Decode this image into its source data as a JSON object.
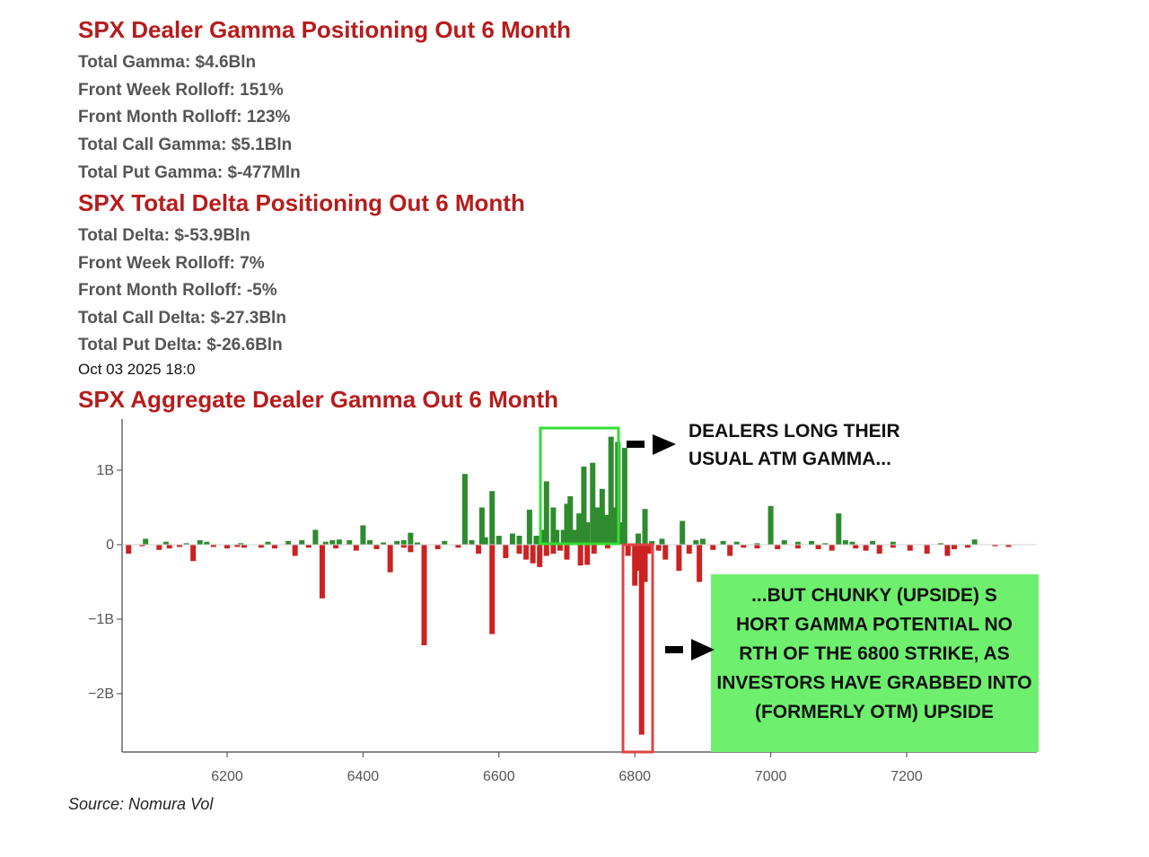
{
  "gamma_section": {
    "title": "SPX Dealer Gamma Positioning Out 6 Month",
    "stats": [
      "Total Gamma: $4.6Bln",
      "Front Week Rolloff: 151%",
      "Front Month Rolloff: 123%",
      "Total Call Gamma: $5.1Bln",
      "Total Put Gamma: $-477Mln"
    ]
  },
  "delta_section": {
    "title": "SPX Total Delta Positioning Out 6 Month",
    "stats": [
      "Total Delta: $-53.9Bln",
      "Front Week Rolloff: 7%",
      "Front Month Rolloff: -5%",
      "Total Call Delta: $-27.3Bln",
      "Total Put Delta: $-26.6Bln"
    ]
  },
  "timestamp": "Oct 03 2025 18:0",
  "source": "Source: Nomura Vol",
  "colors": {
    "heading": "#b71c1c",
    "positive": "#2e8b2e",
    "negative": "#cc2222",
    "highlight_green": "#33dd33",
    "highlight_red": "#dd4444",
    "callout_bg": "#6ef06e"
  },
  "chart_data": {
    "type": "bar",
    "title": "SPX Aggregate Dealer Gamma Out 6 Month",
    "xlabel": "",
    "ylabel": "",
    "xlim": [
      6050,
      7375
    ],
    "ylim": [
      -2.8,
      1.65
    ],
    "x_ticks": [
      6200,
      6400,
      6600,
      6800,
      7000,
      7200
    ],
    "x_tick_labels": [
      "6200",
      "6400",
      "6600",
      "6800",
      "7000",
      "7200"
    ],
    "y_ticks": [
      1,
      0,
      -1,
      -2
    ],
    "y_tick_labels": [
      "1B",
      "0",
      "−1B",
      "−2B"
    ],
    "units": "billions USD gamma",
    "series": [
      {
        "color": "#2e8b2e",
        "points": [
          [
            6080,
            0.08
          ],
          [
            6110,
            0.04
          ],
          [
            6140,
            0.02
          ],
          [
            6160,
            0.06
          ],
          [
            6170,
            0.04
          ],
          [
            6220,
            0.02
          ],
          [
            6260,
            0.04
          ],
          [
            6290,
            0.05
          ],
          [
            6310,
            0.06
          ],
          [
            6330,
            0.2
          ],
          [
            6345,
            0.04
          ],
          [
            6355,
            0.06
          ],
          [
            6365,
            0.07
          ],
          [
            6380,
            0.06
          ],
          [
            6400,
            0.26
          ],
          [
            6410,
            0.06
          ],
          [
            6430,
            0.03
          ],
          [
            6450,
            0.05
          ],
          [
            6460,
            0.06
          ],
          [
            6470,
            0.16
          ],
          [
            6480,
            0.03
          ],
          [
            6520,
            0.05
          ],
          [
            6550,
            0.95
          ],
          [
            6560,
            0.06
          ],
          [
            6575,
            0.5
          ],
          [
            6580,
            0.1
          ],
          [
            6590,
            0.72
          ],
          [
            6600,
            0.12
          ],
          [
            6620,
            0.15
          ],
          [
            6630,
            0.12
          ],
          [
            6645,
            0.47
          ],
          [
            6655,
            0.12
          ],
          [
            6665,
            0.2
          ],
          [
            6670,
            0.85
          ],
          [
            6680,
            0.5
          ],
          [
            6685,
            0.2
          ],
          [
            6695,
            0.2
          ],
          [
            6700,
            0.55
          ],
          [
            6705,
            0.65
          ],
          [
            6712,
            0.2
          ],
          [
            6718,
            0.42
          ],
          [
            6725,
            1.05
          ],
          [
            6730,
            0.3
          ],
          [
            6738,
            1.1
          ],
          [
            6745,
            0.5
          ],
          [
            6752,
            0.75
          ],
          [
            6758,
            0.4
          ],
          [
            6765,
            1.45
          ],
          [
            6770,
            0.5
          ],
          [
            6775,
            1.38
          ],
          [
            6780,
            0.3
          ],
          [
            6785,
            1.3
          ],
          [
            6805,
            0.15
          ],
          [
            6815,
            0.48
          ],
          [
            6825,
            0.05
          ],
          [
            6840,
            0.08
          ],
          [
            6870,
            0.32
          ],
          [
            6890,
            0.06
          ],
          [
            6900,
            0.08
          ],
          [
            6930,
            0.05
          ],
          [
            6950,
            0.04
          ],
          [
            6980,
            0.02
          ],
          [
            7000,
            0.52
          ],
          [
            7020,
            0.06
          ],
          [
            7040,
            0.04
          ],
          [
            7060,
            0.05
          ],
          [
            7080,
            0.02
          ],
          [
            7100,
            0.42
          ],
          [
            7110,
            0.06
          ],
          [
            7120,
            0.04
          ],
          [
            7150,
            0.05
          ],
          [
            7180,
            0.04
          ],
          [
            7250,
            0.02
          ],
          [
            7300,
            0.07
          ]
        ]
      },
      {
        "color": "#cc2222",
        "points": [
          [
            6055,
            -0.12
          ],
          [
            6075,
            -0.02
          ],
          [
            6100,
            -0.07
          ],
          [
            6115,
            -0.05
          ],
          [
            6130,
            -0.03
          ],
          [
            6150,
            -0.22
          ],
          [
            6180,
            -0.03
          ],
          [
            6200,
            -0.05
          ],
          [
            6215,
            -0.03
          ],
          [
            6225,
            -0.04
          ],
          [
            6250,
            -0.04
          ],
          [
            6270,
            -0.05
          ],
          [
            6300,
            -0.15
          ],
          [
            6320,
            -0.04
          ],
          [
            6340,
            -0.72
          ],
          [
            6360,
            -0.05
          ],
          [
            6390,
            -0.08
          ],
          [
            6420,
            -0.06
          ],
          [
            6440,
            -0.37
          ],
          [
            6460,
            -0.04
          ],
          [
            6470,
            -0.1
          ],
          [
            6490,
            -1.35
          ],
          [
            6510,
            -0.06
          ],
          [
            6540,
            -0.04
          ],
          [
            6570,
            -0.12
          ],
          [
            6590,
            -1.2
          ],
          [
            6610,
            -0.18
          ],
          [
            6630,
            -0.12
          ],
          [
            6640,
            -0.2
          ],
          [
            6650,
            -0.25
          ],
          [
            6660,
            -0.3
          ],
          [
            6670,
            -0.15
          ],
          [
            6680,
            -0.12
          ],
          [
            6690,
            -0.08
          ],
          [
            6700,
            -0.2
          ],
          [
            6720,
            -0.28
          ],
          [
            6730,
            -0.27
          ],
          [
            6740,
            -0.12
          ],
          [
            6760,
            -0.05
          ],
          [
            6790,
            -0.15
          ],
          [
            6800,
            -0.55
          ],
          [
            6805,
            -0.35
          ],
          [
            6810,
            -2.55
          ],
          [
            6815,
            -0.5
          ],
          [
            6820,
            -0.12
          ],
          [
            6835,
            -0.08
          ],
          [
            6845,
            -0.2
          ],
          [
            6865,
            -0.35
          ],
          [
            6880,
            -0.12
          ],
          [
            6895,
            -0.5
          ],
          [
            6915,
            -0.07
          ],
          [
            6940,
            -0.15
          ],
          [
            6960,
            -0.04
          ],
          [
            6980,
            -0.05
          ],
          [
            7010,
            -0.06
          ],
          [
            7040,
            -0.05
          ],
          [
            7070,
            -0.06
          ],
          [
            7090,
            -0.08
          ],
          [
            7125,
            -0.05
          ],
          [
            7140,
            -0.08
          ],
          [
            7160,
            -0.12
          ],
          [
            7180,
            -0.04
          ],
          [
            7205,
            -0.08
          ],
          [
            7230,
            -0.12
          ],
          [
            7260,
            -0.15
          ],
          [
            7270,
            -0.06
          ],
          [
            7290,
            -0.04
          ],
          [
            7330,
            -0.02
          ],
          [
            7350,
            -0.03
          ]
        ]
      }
    ],
    "annotations": [
      "DEALERS LONG THEIR USUAL ATM GAMMA...",
      "...BUT CHUNKY (UPSIDE) SHORT GAMMA POTENTIAL NORTH OF THE 6800 STRIKE, AS INVESTORS HAVE GRABBED INTO (FORMERLY OTM) UPSIDE"
    ]
  }
}
